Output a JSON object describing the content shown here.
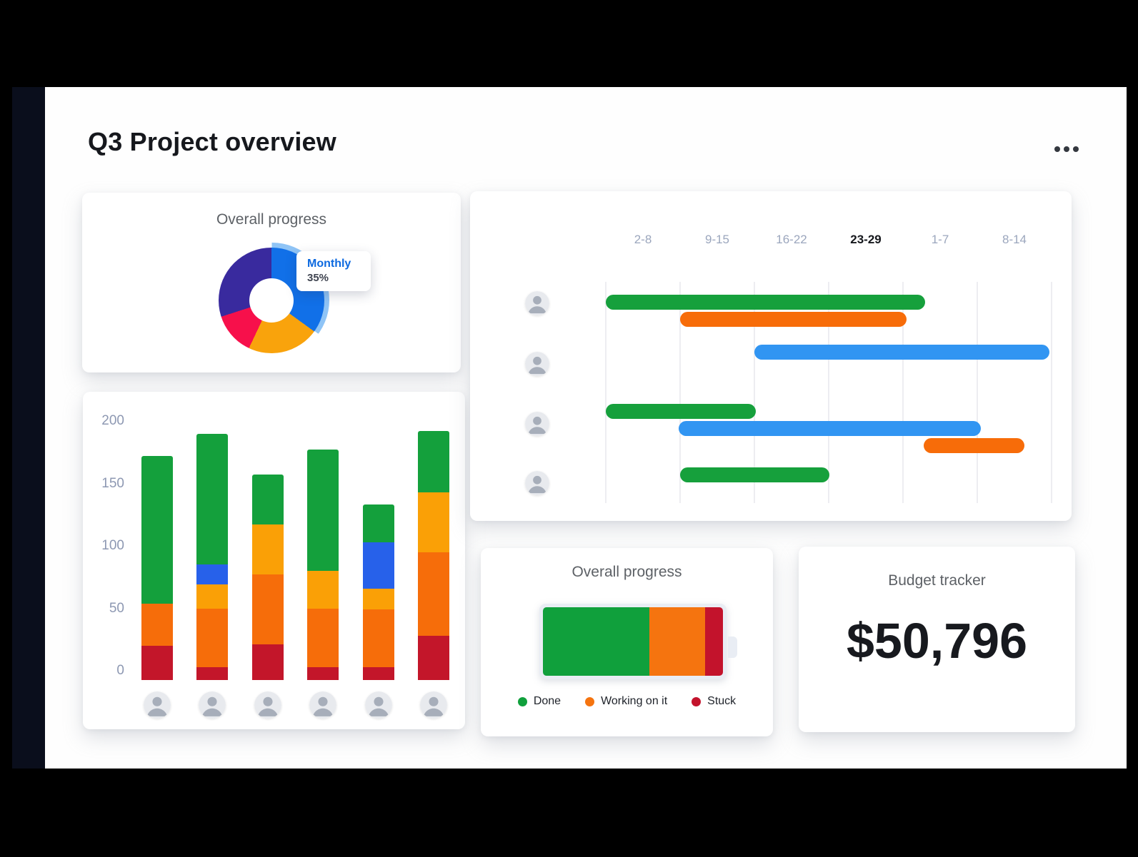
{
  "window": {
    "title": "Q3 Project overview"
  },
  "toolbar": {
    "more_options_label": "More options"
  },
  "colors": {
    "done": "#14a03c",
    "working": "#f66d0a",
    "amber": "#faa006",
    "stuck": "#c3162a",
    "blue": "#2761ea",
    "gantt_done": "#16a03c",
    "gantt_working": "#f76c09",
    "gantt_info": "#3195f2",
    "donut_purple": "#392a9e",
    "donut_blue": "#1170e8",
    "donut_amber": "#f9a30c",
    "donut_pink": "#f7104b",
    "donut_highlight": "#8fc4f6",
    "battery_done": "#10a03c",
    "battery_working": "#f5740f",
    "battery_stuck": "#c3132c"
  },
  "donut_card": {
    "title": "Overall progress",
    "tooltip": {
      "label": "Monthly",
      "value": "35%"
    },
    "chart_data": {
      "type": "pie",
      "donut": true,
      "slices": [
        {
          "label": "Monthly",
          "value": 35,
          "color_key": "donut_blue",
          "highlighted": true
        },
        {
          "label": "",
          "value": 22,
          "color_key": "donut_amber"
        },
        {
          "label": "",
          "value": 13,
          "color_key": "donut_pink"
        },
        {
          "label": "",
          "value": 30,
          "color_key": "donut_purple"
        }
      ]
    }
  },
  "stacked_bar_card": {
    "chart_data": {
      "type": "bar",
      "stacked": true,
      "y_ticks": [
        0,
        50,
        100,
        150,
        200
      ],
      "ylim": [
        0,
        200
      ],
      "bars": [
        {
          "avatar": "person-1",
          "segments": [
            {
              "key": "stuck",
              "value": 20
            },
            {
              "key": "working",
              "value": 34
            },
            {
              "key": "done",
              "value": 118
            }
          ]
        },
        {
          "avatar": "person-2",
          "segments": [
            {
              "key": "stuck",
              "value": 3
            },
            {
              "key": "working",
              "value": 47
            },
            {
              "key": "amber",
              "value": 19
            },
            {
              "key": "blue",
              "value": 16
            },
            {
              "key": "done",
              "value": 105
            }
          ]
        },
        {
          "avatar": "person-3",
          "segments": [
            {
              "key": "stuck",
              "value": 21
            },
            {
              "key": "working",
              "value": 56
            },
            {
              "key": "amber",
              "value": 40
            },
            {
              "key": "done",
              "value": 40
            }
          ]
        },
        {
          "avatar": "person-4",
          "segments": [
            {
              "key": "stuck",
              "value": 3
            },
            {
              "key": "working",
              "value": 47
            },
            {
              "key": "amber",
              "value": 30
            },
            {
              "key": "done",
              "value": 97
            }
          ]
        },
        {
          "avatar": "person-5",
          "segments": [
            {
              "key": "stuck",
              "value": 3
            },
            {
              "key": "working",
              "value": 46
            },
            {
              "key": "amber",
              "value": 17
            },
            {
              "key": "blue",
              "value": 37
            },
            {
              "key": "done",
              "value": 30
            }
          ]
        },
        {
          "avatar": "person-6",
          "segments": [
            {
              "key": "stuck",
              "value": 28
            },
            {
              "key": "working",
              "value": 67
            },
            {
              "key": "amber",
              "value": 48
            },
            {
              "key": "done",
              "value": 49
            }
          ]
        }
      ]
    }
  },
  "gantt_card": {
    "chart_data": {
      "type": "gantt",
      "columns": [
        "2-8",
        "9-15",
        "16-22",
        "23-29",
        "1-7",
        "8-14"
      ],
      "active_column": "23-29",
      "rows": [
        {
          "avatar": "person-a",
          "bars": [
            {
              "color_key": "gantt_done",
              "start": 0,
              "end": 4.3,
              "lane": 0
            },
            {
              "color_key": "gantt_working",
              "start": 1.0,
              "end": 4.05,
              "lane": 1
            }
          ]
        },
        {
          "avatar": "person-b",
          "bars": [
            {
              "color_key": "gantt_info",
              "start": 2.0,
              "end": 5.97,
              "lane": 0
            }
          ]
        },
        {
          "avatar": "person-c",
          "bars": [
            {
              "color_key": "gantt_done",
              "start": 0,
              "end": 2.02,
              "lane": 0
            },
            {
              "color_key": "gantt_info",
              "start": 0.98,
              "end": 5.05,
              "lane": 1
            },
            {
              "color_key": "gantt_working",
              "start": 4.28,
              "end": 5.63,
              "lane": 2
            }
          ]
        },
        {
          "avatar": "person-d",
          "bars": [
            {
              "color_key": "gantt_done",
              "start": 1.0,
              "end": 3.01,
              "lane": 0
            }
          ]
        }
      ]
    }
  },
  "battery_card": {
    "title": "Overall progress",
    "chart_data": {
      "type": "bar",
      "stacked": true,
      "horizontal": true,
      "segments": [
        {
          "label": "Done",
          "value": 59,
          "color_key": "battery_done"
        },
        {
          "label": "Working on it",
          "value": 31,
          "color_key": "battery_working"
        },
        {
          "label": "Stuck",
          "value": 10,
          "color_key": "battery_stuck"
        }
      ]
    },
    "legend": [
      {
        "label": "Done",
        "color_key": "battery_done"
      },
      {
        "label": "Working on it",
        "color_key": "battery_working"
      },
      {
        "label": "Stuck",
        "color_key": "battery_stuck"
      }
    ]
  },
  "budget_card": {
    "title": "Budget tracker",
    "amount": "$50,796"
  }
}
